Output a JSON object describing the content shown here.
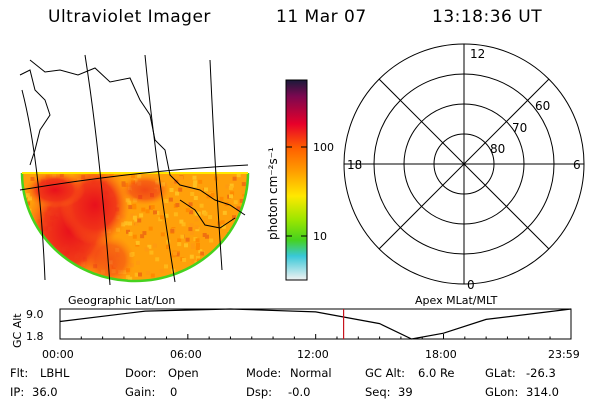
{
  "header": {
    "instrument": "Ultraviolet Imager",
    "date": "11 Mar 07",
    "time": "13:18:36 UT"
  },
  "colorbar": {
    "label": "photon cm⁻²s⁻¹",
    "ticks": [
      "100",
      "10"
    ]
  },
  "geographic_panel": {
    "label": "Geographic Lat/Lon"
  },
  "polar_panel": {
    "label": "Apex MLat/MLT",
    "mlt_labels": {
      "top": "12",
      "left": "18",
      "right": "6",
      "bottom": "0"
    },
    "lat_labels": [
      "60",
      "70",
      "80"
    ]
  },
  "timeline": {
    "ylabel": "GC Alt",
    "yticks": [
      "9.0",
      "1.8"
    ],
    "xticks": [
      "00:00",
      "06:00",
      "12:00",
      "18:00",
      "23:59"
    ]
  },
  "info": {
    "flt": {
      "label": "Flt:",
      "value": "LBHL"
    },
    "ip": {
      "label": "IP:",
      "value": "36.0"
    },
    "door": {
      "label": "Door:",
      "value": "Open"
    },
    "gain": {
      "label": "Gain:",
      "value": "0"
    },
    "mode": {
      "label": "Mode:",
      "value": "Normal"
    },
    "dsp": {
      "label": "Dsp:",
      "value": "-0.0"
    },
    "gcalt": {
      "label": "GC Alt:",
      "value": "6.0 Re"
    },
    "seq": {
      "label": "Seq:",
      "value": "39"
    },
    "glat": {
      "label": "GLat:",
      "value": "-26.3"
    },
    "glon": {
      "label": "GLon:",
      "value": "314.0"
    }
  },
  "colors": {
    "cb_top": "#1a1a3a",
    "cb_red": "#e8002a",
    "cb_orange": "#ff9a00",
    "cb_yellow": "#ffe800",
    "cb_green": "#46d21e",
    "cb_cyan": "#39c8d8",
    "cb_bottom": "#f2f2f2",
    "image_bg": "#ffad0a",
    "marker": "#c8141e"
  },
  "chart_data": {
    "type": "line",
    "title": "",
    "xlabel": "",
    "ylabel": "GC Alt",
    "xlim": [
      "00:00",
      "23:59"
    ],
    "ylim": [
      1.8,
      9.0
    ],
    "series": [
      {
        "x": [
          "00:00",
          "04:00",
          "08:00",
          "12:00",
          "15:00",
          "16:30",
          "18:00",
          "20:00",
          "23:59"
        ],
        "values": [
          6.0,
          8.5,
          9.0,
          8.3,
          5.5,
          1.8,
          3.2,
          6.5,
          9.0
        ]
      }
    ],
    "marker_time": "13:18:36"
  }
}
